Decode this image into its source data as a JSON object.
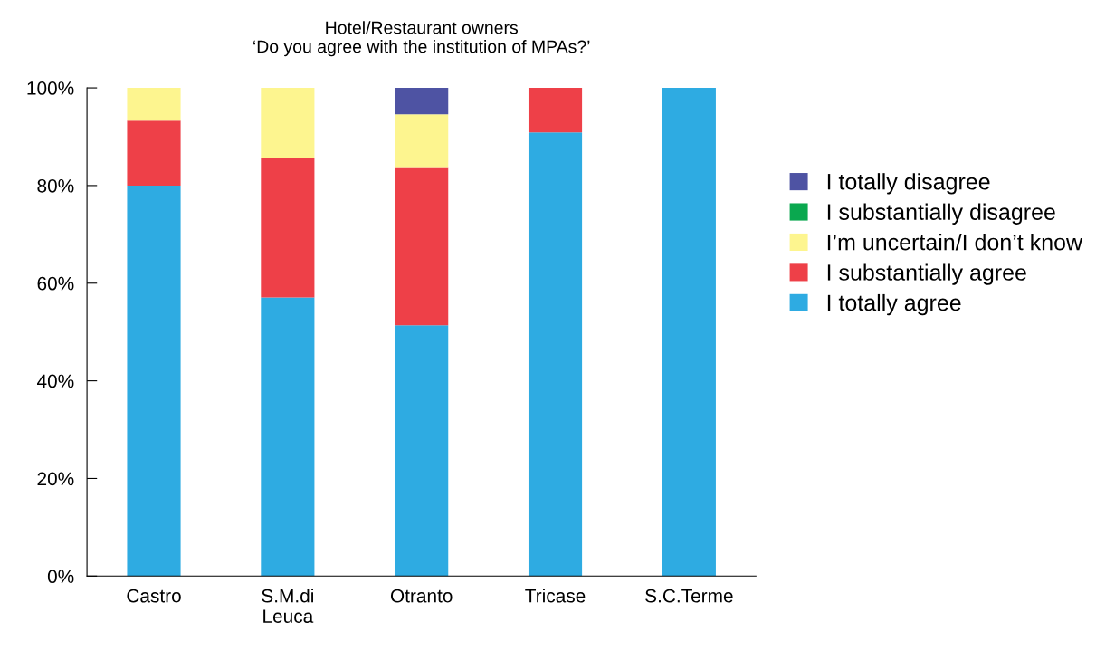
{
  "chart_data": {
    "type": "bar",
    "title": "Hotel/Restaurant owners\n‘Do you agree with the institution of MPAs?’",
    "categories": [
      "Castro",
      "S.M.di\nLeuca",
      "Otranto",
      "Tricase",
      "S.C.Terme"
    ],
    "stacked": true,
    "series": [
      {
        "name": "I totally agree",
        "color": "#2eabe2",
        "values": [
          80,
          57.1,
          51.4,
          90.9,
          100
        ]
      },
      {
        "name": "I substantially agree",
        "color": "#ee4048",
        "values": [
          13.3,
          28.6,
          32.4,
          9.1,
          0
        ]
      },
      {
        "name": "I’m uncertain/I don’t know",
        "color": "#fdf58f",
        "values": [
          6.7,
          14.3,
          10.8,
          0,
          0
        ]
      },
      {
        "name": "I substantially disagree",
        "color": "#0aa84f",
        "values": [
          0,
          0,
          0,
          0,
          0
        ]
      },
      {
        "name": "I totally disagree",
        "color": "#4e53a3",
        "values": [
          0,
          0,
          5.4,
          0,
          0
        ]
      }
    ],
    "ylim": [
      0,
      100
    ],
    "yticks": [
      {
        "value": 0,
        "label": "0%"
      },
      {
        "value": 20,
        "label": "20%"
      },
      {
        "value": 40,
        "label": "40%"
      },
      {
        "value": 60,
        "label": "60%"
      },
      {
        "value": 80,
        "label": "80%"
      },
      {
        "value": 100,
        "label": "100%"
      }
    ],
    "grid": false,
    "legend": "right"
  }
}
